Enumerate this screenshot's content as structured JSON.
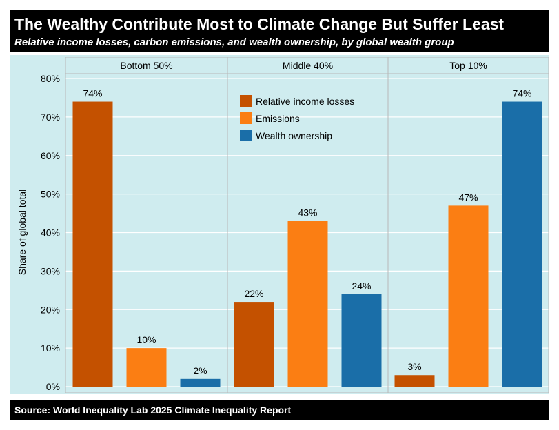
{
  "header": {
    "title": "The Wealthy Contribute Most to Climate Change But Suffer Least",
    "subtitle": "Relative income losses, carbon emissions, and wealth ownership, by global wealth group"
  },
  "footer": {
    "source": "Source: World Inequality Lab 2025 Climate Inequality Report"
  },
  "chart_data": {
    "type": "bar",
    "facets": [
      "Bottom 50%",
      "Middle 40%",
      "Top 10%"
    ],
    "ylabel": "Share of global total",
    "ylim": [
      0,
      80
    ],
    "yticks": [
      "0%",
      "10%",
      "20%",
      "30%",
      "40%",
      "50%",
      "60%",
      "70%",
      "80%"
    ],
    "ytick_values": [
      0,
      10,
      20,
      30,
      40,
      50,
      60,
      70,
      80
    ],
    "grid": true,
    "legend_position": "top-right of first panel",
    "series": [
      {
        "name": "Relative income losses",
        "color": "#c45100",
        "values": [
          74,
          22,
          3
        ],
        "labels": [
          "74%",
          "22%",
          "3%"
        ]
      },
      {
        "name": "Emissions",
        "color": "#fb7e13",
        "values": [
          10,
          43,
          47
        ],
        "labels": [
          "10%",
          "43%",
          "47%"
        ]
      },
      {
        "name": "Wealth ownership",
        "color": "#1a6ea8",
        "values": [
          2,
          24,
          74
        ],
        "labels": [
          "2%",
          "24%",
          "74%"
        ]
      }
    ]
  }
}
